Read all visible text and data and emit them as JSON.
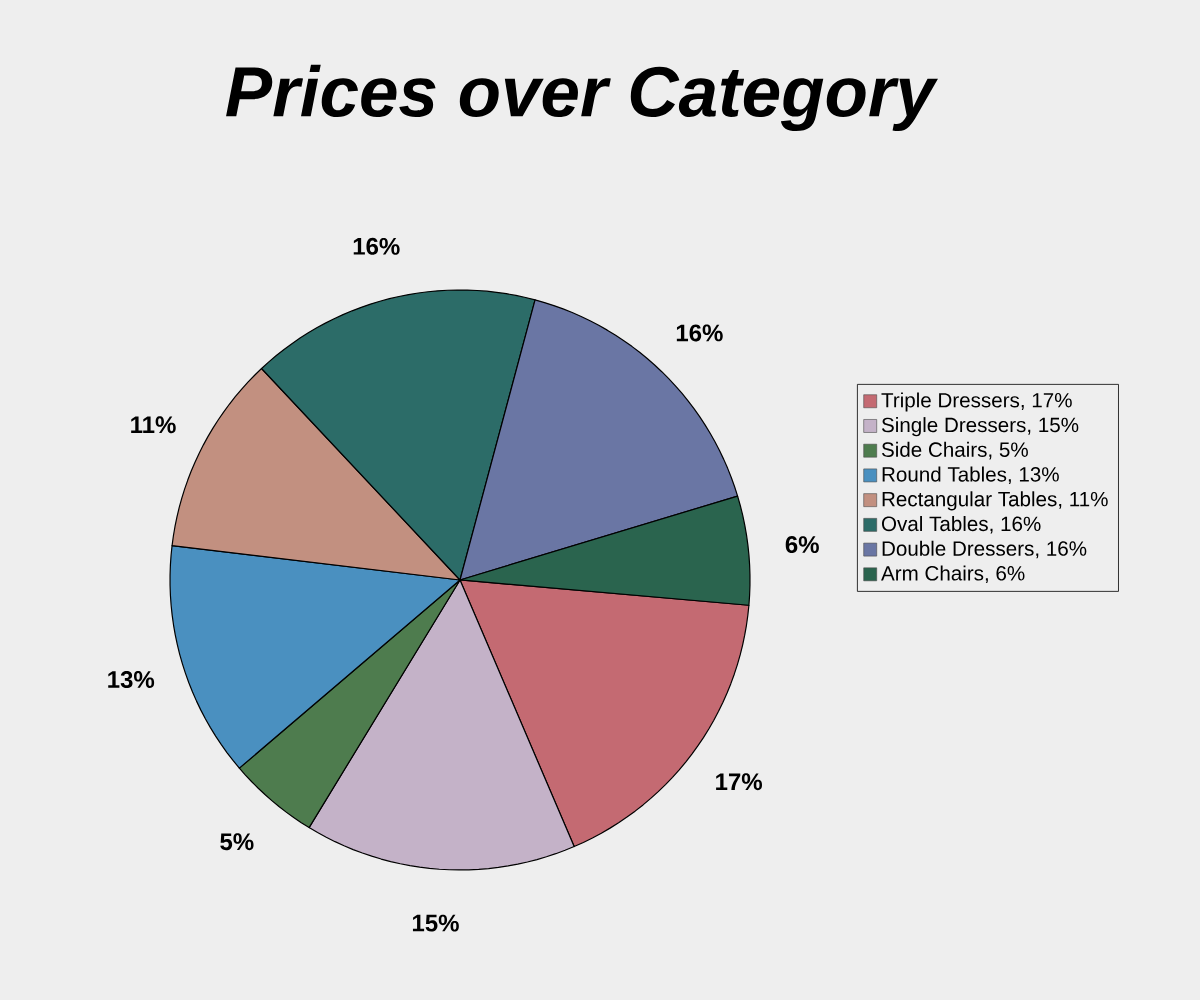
{
  "chart_data": {
    "type": "pie",
    "title": "Prices over Category",
    "categories": [
      "Triple Dressers, 17%",
      "Single Dressers, 15%",
      "Side Chairs, 5%",
      "Round Tables, 13%",
      "Rectangular Tables, 11%",
      "Oval Tables, 16%",
      "Double Dressers, 16%",
      "Arm Chairs, 6%"
    ],
    "values": [
      17,
      15,
      5,
      13,
      11,
      16,
      16,
      6
    ],
    "value_labels": [
      "17%",
      "15%",
      "5%",
      "13%",
      "11%",
      "16%",
      "16%",
      "6%"
    ],
    "colors": [
      "#c46a72",
      "#c4b2c8",
      "#4e7c4e",
      "#4a90c0",
      "#c29080",
      "#2c6c68",
      "#6a76a4",
      "#2a644e"
    ],
    "legend": "right"
  }
}
